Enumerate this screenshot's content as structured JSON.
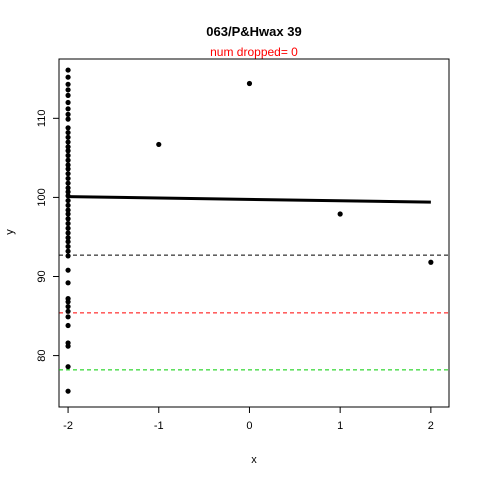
{
  "chart_data": {
    "type": "scatter",
    "title": "063/P&Hwax 39",
    "subtitle": "num dropped= 0",
    "xlabel": "x",
    "ylabel": "y",
    "xlim": [
      -2.1,
      2.2
    ],
    "ylim": [
      73.5,
      117.5
    ],
    "xticks": [
      -2,
      -1,
      0,
      1,
      2
    ],
    "yticks": [
      80,
      90,
      100,
      110
    ],
    "grid": false,
    "points": [
      {
        "x": -2,
        "y": 116.1
      },
      {
        "x": -2,
        "y": 115.2
      },
      {
        "x": -2,
        "y": 114.3
      },
      {
        "x": -2,
        "y": 113.6
      },
      {
        "x": -2,
        "y": 112.9
      },
      {
        "x": -2,
        "y": 112.0
      },
      {
        "x": -2,
        "y": 111.2
      },
      {
        "x": -2,
        "y": 110.5
      },
      {
        "x": -2,
        "y": 109.9
      },
      {
        "x": -2,
        "y": 108.8
      },
      {
        "x": -2,
        "y": 108.2
      },
      {
        "x": -2,
        "y": 107.6
      },
      {
        "x": -2,
        "y": 107.0
      },
      {
        "x": -2,
        "y": 106.4
      },
      {
        "x": -2,
        "y": 105.9
      },
      {
        "x": -2,
        "y": 105.3
      },
      {
        "x": -2,
        "y": 104.7
      },
      {
        "x": -2,
        "y": 104.1
      },
      {
        "x": -2,
        "y": 103.6
      },
      {
        "x": -2,
        "y": 103.0
      },
      {
        "x": -2,
        "y": 102.4
      },
      {
        "x": -2,
        "y": 101.8
      },
      {
        "x": -2,
        "y": 101.2
      },
      {
        "x": -2,
        "y": 100.7
      },
      {
        "x": -2,
        "y": 100.2
      },
      {
        "x": -2,
        "y": 99.6
      },
      {
        "x": -2,
        "y": 99.0
      },
      {
        "x": -2,
        "y": 98.4
      },
      {
        "x": -2,
        "y": 97.9
      },
      {
        "x": -2,
        "y": 97.3
      },
      {
        "x": -2,
        "y": 96.7
      },
      {
        "x": -2,
        "y": 96.1
      },
      {
        "x": -2,
        "y": 95.5
      },
      {
        "x": -2,
        "y": 94.9
      },
      {
        "x": -2,
        "y": 94.4
      },
      {
        "x": -2,
        "y": 93.8
      },
      {
        "x": -2,
        "y": 93.2
      },
      {
        "x": -2,
        "y": 92.6
      },
      {
        "x": -2,
        "y": 90.8
      },
      {
        "x": -2,
        "y": 89.2
      },
      {
        "x": -2,
        "y": 87.2
      },
      {
        "x": -2,
        "y": 86.8
      },
      {
        "x": -2,
        "y": 86.2
      },
      {
        "x": -2,
        "y": 85.6
      },
      {
        "x": -2,
        "y": 84.9
      },
      {
        "x": -2,
        "y": 83.8
      },
      {
        "x": -2,
        "y": 81.6
      },
      {
        "x": -2,
        "y": 81.2
      },
      {
        "x": -2,
        "y": 78.6
      },
      {
        "x": -2,
        "y": 75.5
      },
      {
        "x": -1,
        "y": 106.7
      },
      {
        "x": 0,
        "y": 114.4
      },
      {
        "x": 1,
        "y": 97.9
      },
      {
        "x": 2,
        "y": 91.8
      }
    ],
    "fit_line": {
      "x": [
        -2,
        2
      ],
      "y": [
        100.1,
        99.4
      ],
      "color": "#000000"
    },
    "hlines": [
      {
        "y": 92.7,
        "color": "#000000",
        "style": "dashed"
      },
      {
        "y": 85.4,
        "color": "#ff0000",
        "style": "dashed"
      },
      {
        "y": 78.2,
        "color": "#00cd00",
        "style": "dashed"
      }
    ],
    "colors": {
      "points": "#000000",
      "subtitle": "#ff0000",
      "axis": "#000000"
    }
  }
}
